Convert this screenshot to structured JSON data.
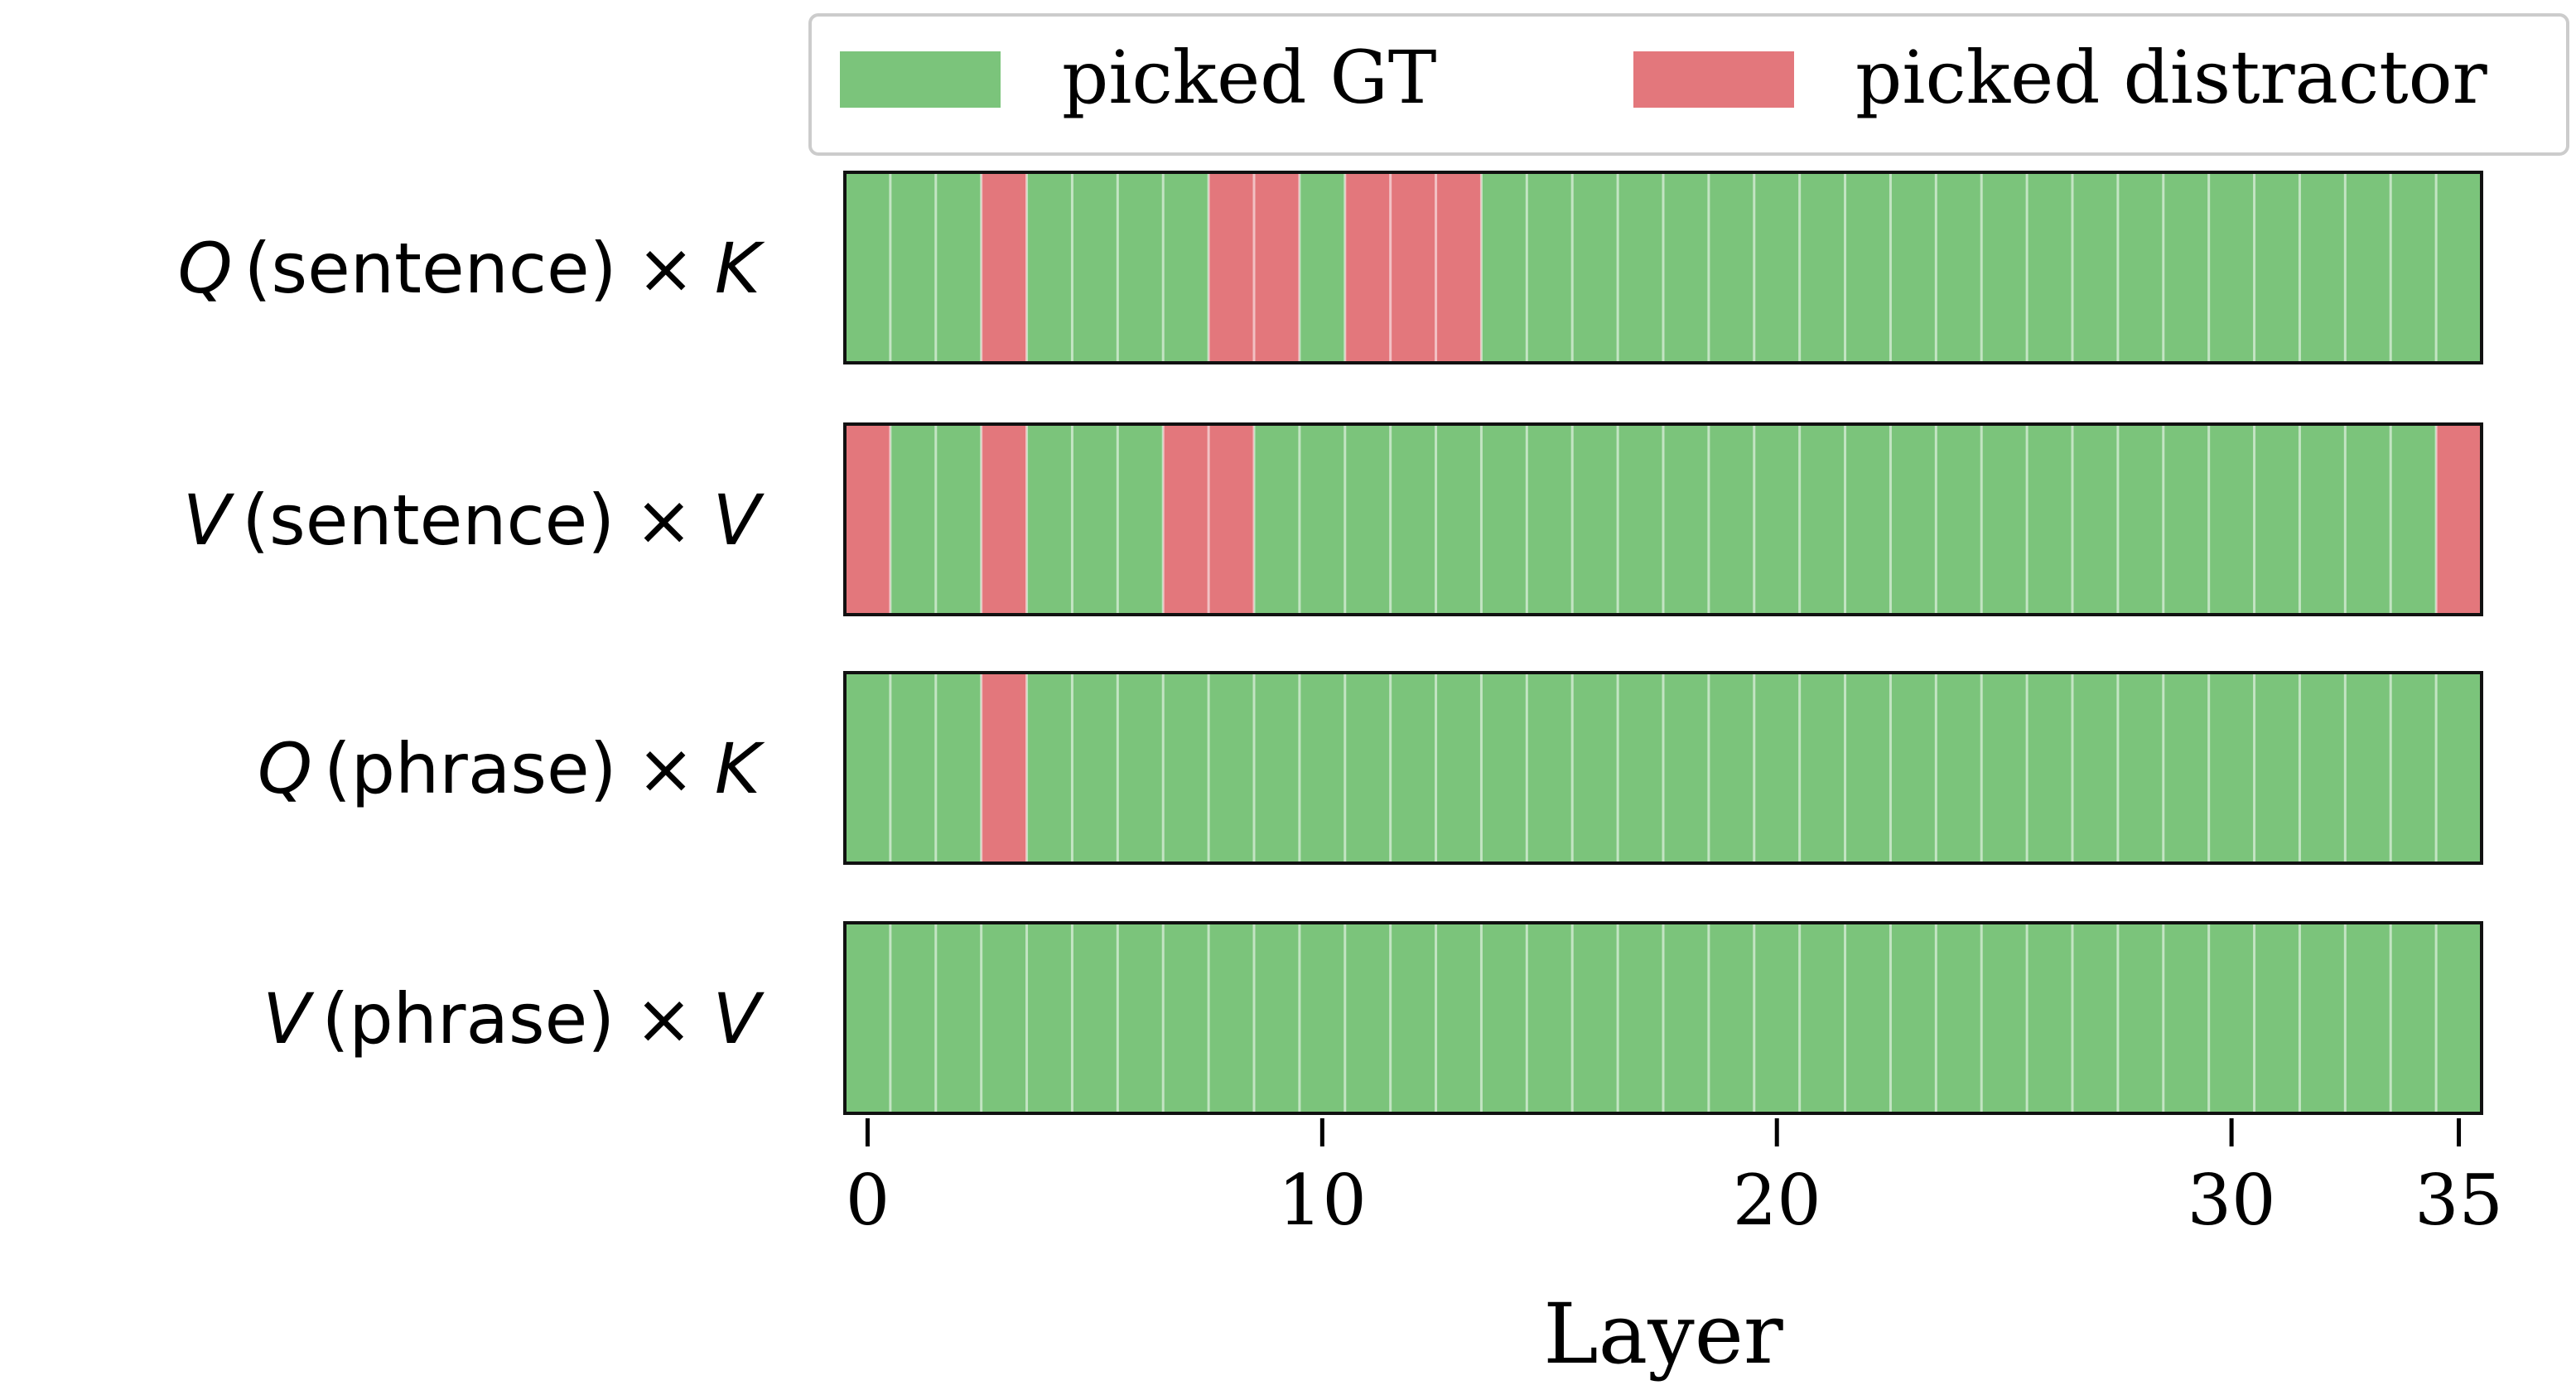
{
  "chart_data": {
    "type": "heatmap",
    "title": "",
    "xlabel": "Layer",
    "ylabel": "",
    "num_layers": 36,
    "xlim": [
      0,
      35
    ],
    "x_ticks": [
      0,
      10,
      20,
      30,
      35
    ],
    "x_tick_labels": [
      "0",
      "10",
      "20",
      "30",
      "35"
    ],
    "legend_position": "top-right",
    "legend": [
      {
        "name": "picked GT",
        "color": "#7BC47B"
      },
      {
        "name": "picked distractor",
        "color": "#E3777C"
      }
    ],
    "rows": [
      {
        "label": {
          "sym1": "Q",
          "text": "(sentence)",
          "op": "×",
          "sym2": "K"
        },
        "distractor_layers": [
          3,
          8,
          9,
          11,
          12,
          13
        ]
      },
      {
        "label": {
          "sym1": "V",
          "text": "(sentence)",
          "op": "×",
          "sym2": "V"
        },
        "distractor_layers": [
          0,
          3,
          7,
          8,
          35
        ]
      },
      {
        "label": {
          "sym1": "Q",
          "text": "(phrase)",
          "op": "×",
          "sym2": "K"
        },
        "distractor_layers": [
          3
        ]
      },
      {
        "label": {
          "sym1": "V",
          "text": "(phrase)",
          "op": "×",
          "sym2": "V"
        },
        "distractor_layers": []
      }
    ]
  }
}
